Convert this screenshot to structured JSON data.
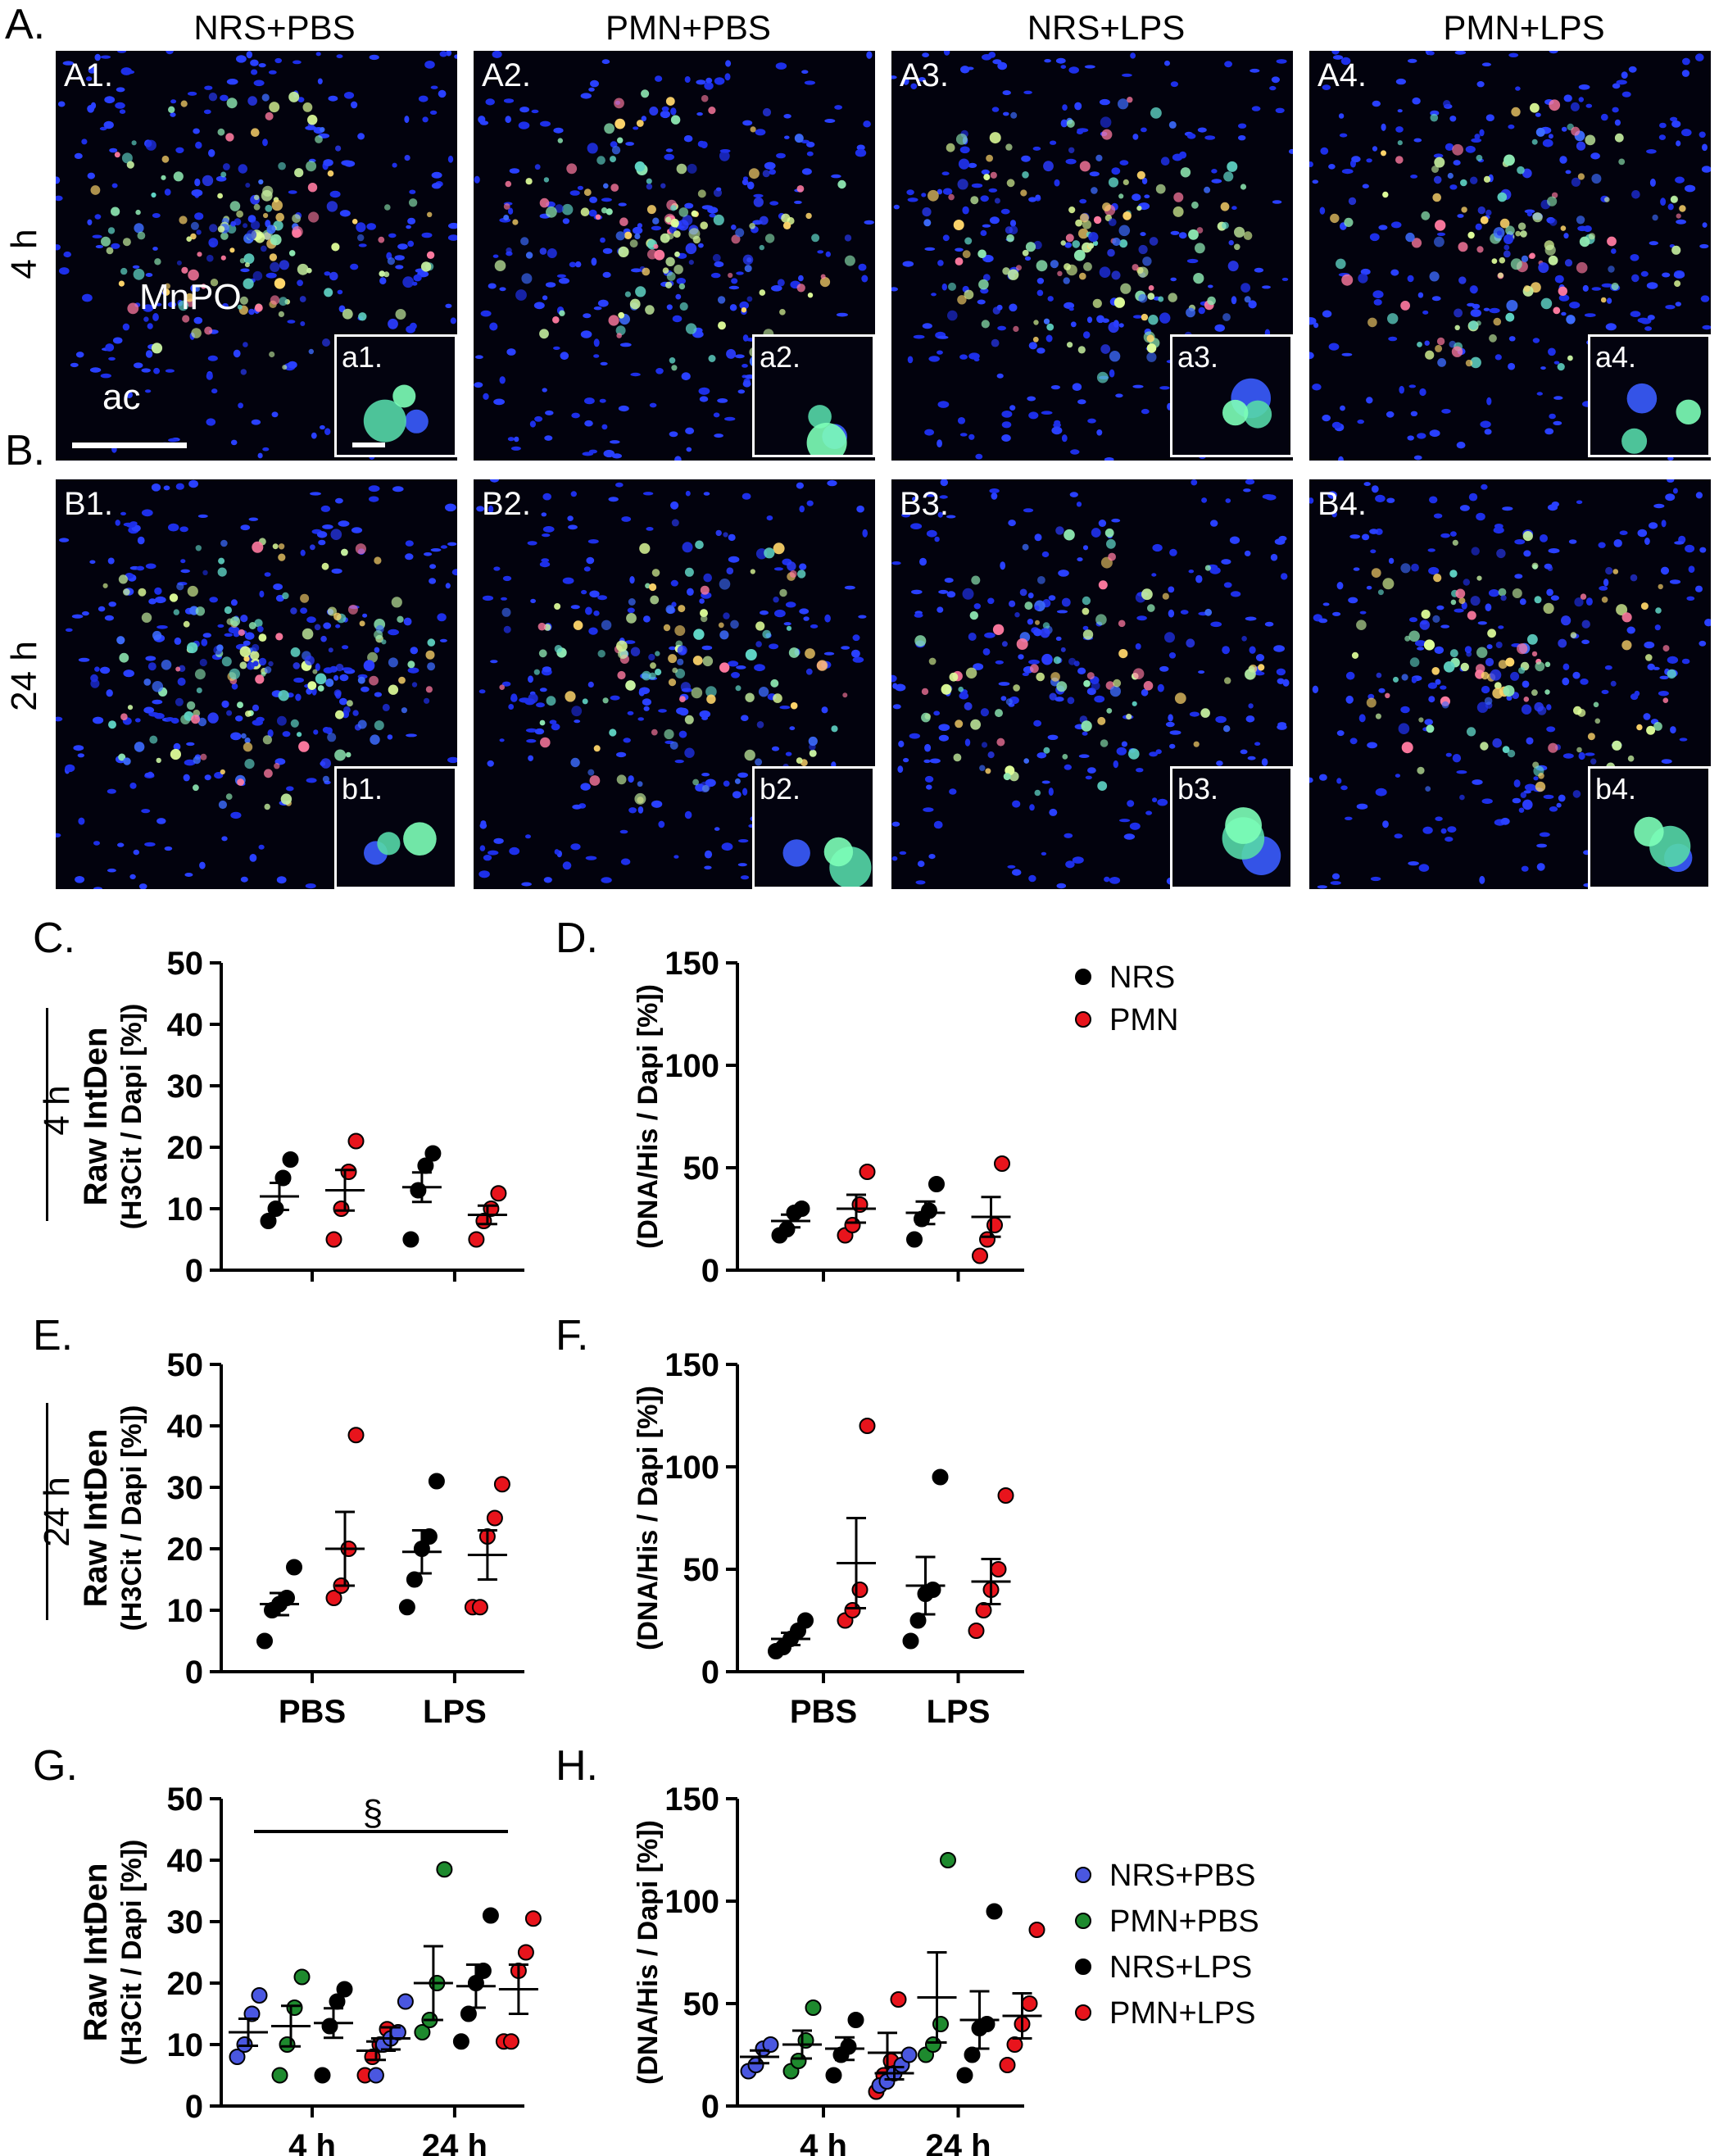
{
  "panel_letters": {
    "A": "A.",
    "B": "B.",
    "C": "C.",
    "D": "D.",
    "E": "E.",
    "F": "F.",
    "G": "G.",
    "H": "H."
  },
  "column_titles": [
    "NRS+PBS",
    "PMN+PBS",
    "NRS+LPS",
    "PMN+LPS"
  ],
  "row_labels": {
    "row_a": "4 h",
    "row_b": "24 h"
  },
  "tile_labels_a": [
    "A1.",
    "A2.",
    "A3.",
    "A4."
  ],
  "tile_labels_b": [
    "B1.",
    "B2.",
    "B3.",
    "B4."
  ],
  "inset_labels_a": [
    "a1.",
    "a2.",
    "a3.",
    "a4."
  ],
  "inset_labels_b": [
    "b1.",
    "b2.",
    "b3.",
    "b4."
  ],
  "structure_labels": {
    "mnpo": "MnPO",
    "ac": "ac"
  },
  "side_labels": {
    "c_row": "4 h",
    "e_row": "24 h"
  },
  "colors": {
    "NRS": "#000000",
    "PMN": "#e8141c",
    "NRS+PBS": "#4a57e0",
    "PMN+PBS": "#1e8a2e",
    "NRS+LPS": "#000000",
    "PMN+LPS": "#e8141c",
    "nucleus": "#1a2ee0",
    "cell": "#6fd8a0"
  },
  "legend_top": [
    {
      "label": "NRS",
      "color": "#000000"
    },
    {
      "label": "PMN",
      "color": "#e8141c"
    }
  ],
  "legend_bottom": [
    {
      "label": "NRS+PBS",
      "color": "#4a57e0"
    },
    {
      "label": "PMN+PBS",
      "color": "#1e8a2e"
    },
    {
      "label": "NRS+LPS",
      "color": "#000000"
    },
    {
      "label": "PMN+LPS",
      "color": "#e8141c"
    }
  ],
  "chart_data": [
    {
      "id": "C",
      "type": "scatter",
      "ylabel_line1": "Raw IntDen",
      "ylabel_line2": "(H3Cit / Dapi [%])",
      "ylim": [
        0,
        50
      ],
      "yticks": [
        "0",
        "10",
        "20",
        "30",
        "40",
        "50"
      ],
      "categories": [],
      "series": [
        {
          "name": "NRS",
          "group": "PBS",
          "values": [
            8,
            10,
            15,
            18
          ],
          "mean": 12,
          "sem": 2.2
        },
        {
          "name": "PMN",
          "group": "PBS",
          "values": [
            5,
            10,
            16,
            21
          ],
          "mean": 13,
          "sem": 3.3
        },
        {
          "name": "NRS",
          "group": "LPS",
          "values": [
            5,
            13,
            17,
            19
          ],
          "mean": 13.5,
          "sem": 2.4
        },
        {
          "name": "PMN",
          "group": "LPS",
          "values": [
            5,
            8,
            10,
            12.5
          ],
          "mean": 9,
          "sem": 1.5
        }
      ]
    },
    {
      "id": "D",
      "type": "scatter",
      "ylabel_line1": "",
      "ylabel_line2": "(DNA/His / Dapi [%])",
      "ylim": [
        0,
        150
      ],
      "yticks": [
        "0",
        "50",
        "100",
        "150"
      ],
      "categories": [],
      "series": [
        {
          "name": "NRS",
          "group": "PBS",
          "values": [
            17,
            20,
            28,
            30
          ],
          "mean": 24,
          "sem": 3.1
        },
        {
          "name": "PMN",
          "group": "PBS",
          "values": [
            17,
            22,
            32,
            48
          ],
          "mean": 30,
          "sem": 6.8
        },
        {
          "name": "NRS",
          "group": "LPS",
          "values": [
            15,
            25,
            29,
            42
          ],
          "mean": 28,
          "sem": 5.5
        },
        {
          "name": "PMN",
          "group": "LPS",
          "values": [
            7,
            15,
            22,
            52
          ],
          "mean": 26,
          "sem": 9.7
        }
      ]
    },
    {
      "id": "E",
      "type": "scatter",
      "ylabel_line1": "Raw IntDen",
      "ylabel_line2": "(H3Cit / Dapi [%])",
      "ylim": [
        0,
        50
      ],
      "yticks": [
        "0",
        "10",
        "20",
        "30",
        "40",
        "50"
      ],
      "categories": [
        "PBS",
        "LPS"
      ],
      "series": [
        {
          "name": "NRS",
          "group": "PBS",
          "values": [
            5,
            10,
            11,
            12,
            17
          ],
          "mean": 11,
          "sem": 1.8
        },
        {
          "name": "PMN",
          "group": "PBS",
          "values": [
            12,
            14,
            20,
            38.5
          ],
          "mean": 20,
          "sem": 6
        },
        {
          "name": "NRS",
          "group": "LPS",
          "values": [
            10.5,
            15,
            20,
            22,
            31
          ],
          "mean": 19.5,
          "sem": 3.5
        },
        {
          "name": "PMN",
          "group": "LPS",
          "values": [
            10.5,
            10.5,
            22,
            25,
            30.5
          ],
          "mean": 19,
          "sem": 4
        }
      ]
    },
    {
      "id": "F",
      "type": "scatter",
      "ylabel_line1": "",
      "ylabel_line2": "(DNA/His / Dapi [%])",
      "ylim": [
        0,
        150
      ],
      "yticks": [
        "0",
        "50",
        "100",
        "150"
      ],
      "categories": [
        "PBS",
        "LPS"
      ],
      "series": [
        {
          "name": "NRS",
          "group": "PBS",
          "values": [
            10,
            12,
            16,
            20,
            25
          ],
          "mean": 16,
          "sem": 3
        },
        {
          "name": "PMN",
          "group": "PBS",
          "values": [
            25,
            30,
            40,
            120
          ],
          "mean": 53,
          "sem": 22
        },
        {
          "name": "NRS",
          "group": "LPS",
          "values": [
            15,
            25,
            38,
            40,
            95
          ],
          "mean": 42,
          "sem": 14
        },
        {
          "name": "PMN",
          "group": "LPS",
          "values": [
            20,
            30,
            40,
            50,
            86
          ],
          "mean": 44,
          "sem": 11
        }
      ]
    },
    {
      "id": "G",
      "type": "scatter",
      "ylabel_line1": "Raw IntDen",
      "ylabel_line2": "(H3Cit / Dapi [%])",
      "ylim": [
        0,
        50
      ],
      "yticks": [
        "0",
        "10",
        "20",
        "30",
        "40",
        "50"
      ],
      "categories": [
        "4 h",
        "24 h"
      ],
      "annotation": "§",
      "series": [
        {
          "name": "NRS+PBS",
          "group": "4 h",
          "values": [
            8,
            10,
            15,
            18
          ],
          "mean": 12,
          "sem": 2.2
        },
        {
          "name": "PMN+PBS",
          "group": "4 h",
          "values": [
            5,
            10,
            16,
            21
          ],
          "mean": 13,
          "sem": 3.3
        },
        {
          "name": "NRS+LPS",
          "group": "4 h",
          "values": [
            5,
            13,
            17,
            19
          ],
          "mean": 13.5,
          "sem": 2.4
        },
        {
          "name": "PMN+LPS",
          "group": "4 h",
          "values": [
            5,
            8,
            10,
            12.5
          ],
          "mean": 9,
          "sem": 1.5
        },
        {
          "name": "NRS+PBS",
          "group": "24 h",
          "values": [
            5,
            10,
            11,
            12,
            17
          ],
          "mean": 11,
          "sem": 1.8
        },
        {
          "name": "PMN+PBS",
          "group": "24 h",
          "values": [
            12,
            14,
            20,
            38.5
          ],
          "mean": 20,
          "sem": 6
        },
        {
          "name": "NRS+LPS",
          "group": "24 h",
          "values": [
            10.5,
            15,
            20,
            22,
            31
          ],
          "mean": 19.5,
          "sem": 3.5
        },
        {
          "name": "PMN+LPS",
          "group": "24 h",
          "values": [
            10.5,
            10.5,
            22,
            25,
            30.5
          ],
          "mean": 19,
          "sem": 4
        }
      ]
    },
    {
      "id": "H",
      "type": "scatter",
      "ylabel_line1": "",
      "ylabel_line2": "(DNA/His / Dapi [%])",
      "ylim": [
        0,
        150
      ],
      "yticks": [
        "0",
        "50",
        "100",
        "150"
      ],
      "categories": [
        "4 h",
        "24 h"
      ],
      "series": [
        {
          "name": "NRS+PBS",
          "group": "4 h",
          "values": [
            17,
            20,
            28,
            30
          ],
          "mean": 24,
          "sem": 3.1
        },
        {
          "name": "PMN+PBS",
          "group": "4 h",
          "values": [
            17,
            22,
            32,
            48
          ],
          "mean": 30,
          "sem": 6.8
        },
        {
          "name": "NRS+LPS",
          "group": "4 h",
          "values": [
            15,
            25,
            29,
            42
          ],
          "mean": 28,
          "sem": 5.5
        },
        {
          "name": "PMN+LPS",
          "group": "4 h",
          "values": [
            7,
            15,
            22,
            52
          ],
          "mean": 26,
          "sem": 9.7
        },
        {
          "name": "NRS+PBS",
          "group": "24 h",
          "values": [
            10,
            12,
            16,
            20,
            25
          ],
          "mean": 16,
          "sem": 3
        },
        {
          "name": "PMN+PBS",
          "group": "24 h",
          "values": [
            25,
            30,
            40,
            120
          ],
          "mean": 53,
          "sem": 22
        },
        {
          "name": "NRS+LPS",
          "group": "24 h",
          "values": [
            15,
            25,
            38,
            40,
            95
          ],
          "mean": 42,
          "sem": 14
        },
        {
          "name": "PMN+LPS",
          "group": "24 h",
          "values": [
            20,
            30,
            40,
            50,
            86
          ],
          "mean": 44,
          "sem": 11
        }
      ]
    }
  ]
}
